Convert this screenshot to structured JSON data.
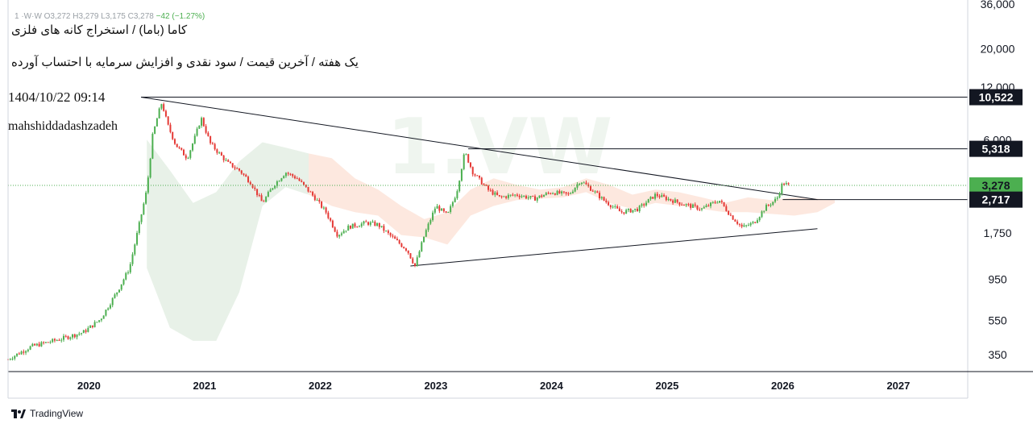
{
  "header": {
    "ohlc_line": "1 ·W·W  O3,272  H3,279  L3,175  C3,278",
    "change": "−42 (−1.27%)",
    "title_line": "کاما (باما) / استخراج کانه های فلزی",
    "subtitle_line": "یک هفته / آخرین قیمت / سود نقدی و افزایش سرمایه با احتساب آورده",
    "datetime": "1404/10/22 09:14",
    "author": "mahshiddadashzadeh"
  },
  "footer": {
    "brand": "TradingView"
  },
  "colors": {
    "up": "#4caf50",
    "down": "#e53935",
    "price_line": "#4caf50",
    "cloud": "#e6efe6",
    "cloud_red": "#fde6dc",
    "axis_text": "#131722"
  },
  "chart_data": {
    "type": "candlestick",
    "yscale": "log",
    "ylim": [
      280,
      38000
    ],
    "x_range": [
      2019.3,
      2027.6
    ],
    "x_ticks": [
      {
        "label": "2020",
        "value": 2020
      },
      {
        "label": "2021",
        "value": 2021
      },
      {
        "label": "2022",
        "value": 2022
      },
      {
        "label": "2023",
        "value": 2023
      },
      {
        "label": "2024",
        "value": 2024
      },
      {
        "label": "2025",
        "value": 2025
      },
      {
        "label": "2026",
        "value": 2026
      },
      {
        "label": "2027",
        "value": 2027
      }
    ],
    "y_ticks": [
      {
        "label": "36,000",
        "value": 36000
      },
      {
        "label": "20,000",
        "value": 20000
      },
      {
        "label": "12,000",
        "value": 12000
      },
      {
        "label": "6,000",
        "value": 6000
      },
      {
        "label": "1,750",
        "value": 1750
      },
      {
        "label": "950",
        "value": 950
      },
      {
        "label": "550",
        "value": 550
      },
      {
        "label": "350",
        "value": 350
      }
    ],
    "price_labels": [
      {
        "label": "10,522",
        "value": 10522,
        "style": "dark"
      },
      {
        "label": "5,318",
        "value": 5318,
        "style": "dark"
      },
      {
        "label": "3,278",
        "value": 3278,
        "style": "current"
      },
      {
        "label": "2,717",
        "value": 2717,
        "style": "dark"
      }
    ],
    "last_price": 3278,
    "price_path": [
      [
        2019.3,
        330
      ],
      [
        2019.5,
        390
      ],
      [
        2019.75,
        430
      ],
      [
        2019.95,
        470
      ],
      [
        2020.1,
        560
      ],
      [
        2020.25,
        820
      ],
      [
        2020.35,
        1100
      ],
      [
        2020.43,
        1900
      ],
      [
        2020.5,
        3100
      ],
      [
        2020.55,
        6300
      ],
      [
        2020.6,
        8500
      ],
      [
        2020.63,
        9800
      ],
      [
        2020.68,
        7300
      ],
      [
        2020.75,
        5600
      ],
      [
        2020.85,
        4700
      ],
      [
        2020.92,
        6300
      ],
      [
        2020.97,
        8000
      ],
      [
        2021.05,
        5700
      ],
      [
        2021.2,
        4400
      ],
      [
        2021.3,
        4000
      ],
      [
        2021.4,
        3400
      ],
      [
        2021.5,
        2600
      ],
      [
        2021.6,
        3300
      ],
      [
        2021.7,
        3900
      ],
      [
        2021.8,
        3600
      ],
      [
        2021.95,
        2800
      ],
      [
        2022.05,
        2300
      ],
      [
        2022.15,
        1700
      ],
      [
        2022.25,
        1900
      ],
      [
        2022.4,
        2000
      ],
      [
        2022.5,
        1950
      ],
      [
        2022.6,
        1700
      ],
      [
        2022.75,
        1400
      ],
      [
        2022.82,
        1130
      ],
      [
        2022.9,
        1700
      ],
      [
        2023.0,
        2500
      ],
      [
        2023.1,
        2200
      ],
      [
        2023.18,
        3000
      ],
      [
        2023.25,
        5100
      ],
      [
        2023.32,
        3900
      ],
      [
        2023.45,
        3100
      ],
      [
        2023.55,
        2800
      ],
      [
        2023.7,
        2900
      ],
      [
        2023.85,
        2750
      ],
      [
        2024.0,
        3000
      ],
      [
        2024.15,
        2900
      ],
      [
        2024.25,
        3500
      ],
      [
        2024.35,
        3100
      ],
      [
        2024.45,
        2700
      ],
      [
        2024.6,
        2300
      ],
      [
        2024.75,
        2400
      ],
      [
        2024.9,
        2900
      ],
      [
        2025.0,
        2750
      ],
      [
        2025.15,
        2550
      ],
      [
        2025.3,
        2400
      ],
      [
        2025.45,
        2700
      ],
      [
        2025.55,
        2200
      ],
      [
        2025.65,
        1880
      ],
      [
        2025.75,
        2000
      ],
      [
        2025.85,
        2450
      ],
      [
        2025.95,
        2750
      ],
      [
        2026.0,
        3400
      ],
      [
        2026.05,
        3278
      ]
    ],
    "trendlines": [
      {
        "name": "upper",
        "from": [
          2020.45,
          10522
        ],
        "to": [
          2026.3,
          2717
        ]
      },
      {
        "name": "lower",
        "from": [
          2022.78,
          1130
        ],
        "to": [
          2026.3,
          1850
        ]
      }
    ],
    "horizontal_lines": [
      {
        "value": 10522,
        "from_x": 2020.45
      },
      {
        "value": 5318,
        "from_x": 2023.28
      },
      {
        "value": 2717,
        "from_x": 2026.0
      }
    ],
    "cloud_green": [
      [
        2020.5,
        6000,
        1100
      ],
      [
        2020.7,
        4000,
        500
      ],
      [
        2020.9,
        2600,
        420
      ],
      [
        2021.1,
        3000,
        420
      ],
      [
        2021.3,
        4500,
        800
      ],
      [
        2021.5,
        5800,
        2500
      ],
      [
        2021.7,
        5400,
        3200
      ],
      [
        2021.9,
        5000,
        2900
      ]
    ],
    "cloud_red": [
      [
        2021.9,
        5000,
        2900
      ],
      [
        2022.1,
        4700,
        2500
      ],
      [
        2022.3,
        3600,
        2300
      ],
      [
        2022.5,
        3100,
        2200
      ],
      [
        2022.7,
        2500,
        1700
      ],
      [
        2022.9,
        2100,
        1650
      ],
      [
        2023.1,
        2300,
        1500
      ],
      [
        2023.3,
        3100,
        2200
      ],
      [
        2023.5,
        3600,
        2500
      ],
      [
        2023.7,
        3300,
        2700
      ],
      [
        2023.9,
        3100,
        2750
      ],
      [
        2024.1,
        3200,
        2800
      ],
      [
        2024.3,
        3600,
        3000
      ],
      [
        2024.5,
        3300,
        2600
      ],
      [
        2024.7,
        2900,
        2400
      ],
      [
        2024.9,
        3100,
        2600
      ],
      [
        2025.1,
        3000,
        2500
      ],
      [
        2025.3,
        2800,
        2400
      ],
      [
        2025.5,
        2600,
        2300
      ],
      [
        2025.7,
        2800,
        2300
      ],
      [
        2025.9,
        2700,
        2250
      ],
      [
        2026.1,
        2800,
        2200
      ],
      [
        2026.3,
        2750,
        2300
      ],
      [
        2026.45,
        2700,
        2600
      ]
    ]
  }
}
